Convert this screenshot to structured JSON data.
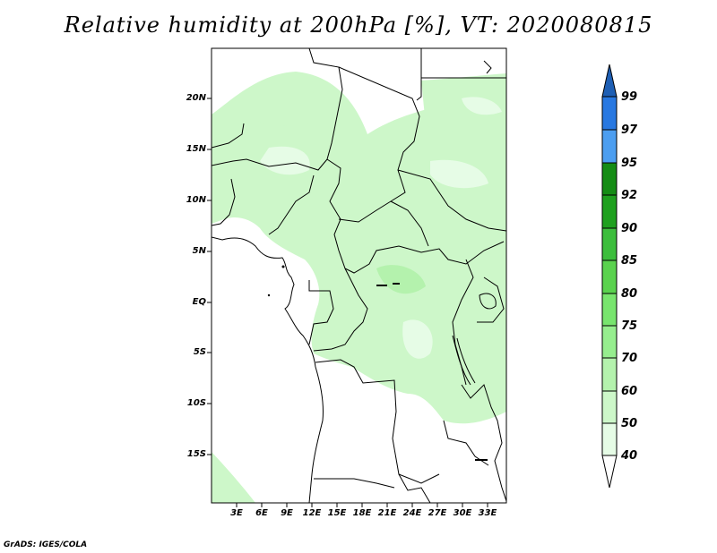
{
  "title": "Relative humidity at 200hPa [%], VT: 2020080815",
  "credit": "GrADS: IGES/COLA",
  "lat_labels": [
    "20N",
    "15N",
    "10N",
    "5N",
    "EQ",
    "5S",
    "10S",
    "15S"
  ],
  "lon_labels": [
    "3E",
    "6E",
    "9E",
    "12E",
    "15E",
    "18E",
    "21E",
    "24E",
    "27E",
    "30E",
    "33E"
  ],
  "colorbar": {
    "levels": [
      "40",
      "50",
      "60",
      "70",
      "75",
      "80",
      "85",
      "90",
      "92",
      "95",
      "97",
      "99"
    ],
    "colors": [
      "#ffffff",
      "#e6fce6",
      "#cdf7c9",
      "#b4f2ad",
      "#96ee8e",
      "#78e56e",
      "#5ad24e",
      "#3cbe3c",
      "#1ea01e",
      "#148c14",
      "#4c9ef0",
      "#2878e1",
      "#1e5fb4"
    ]
  }
}
